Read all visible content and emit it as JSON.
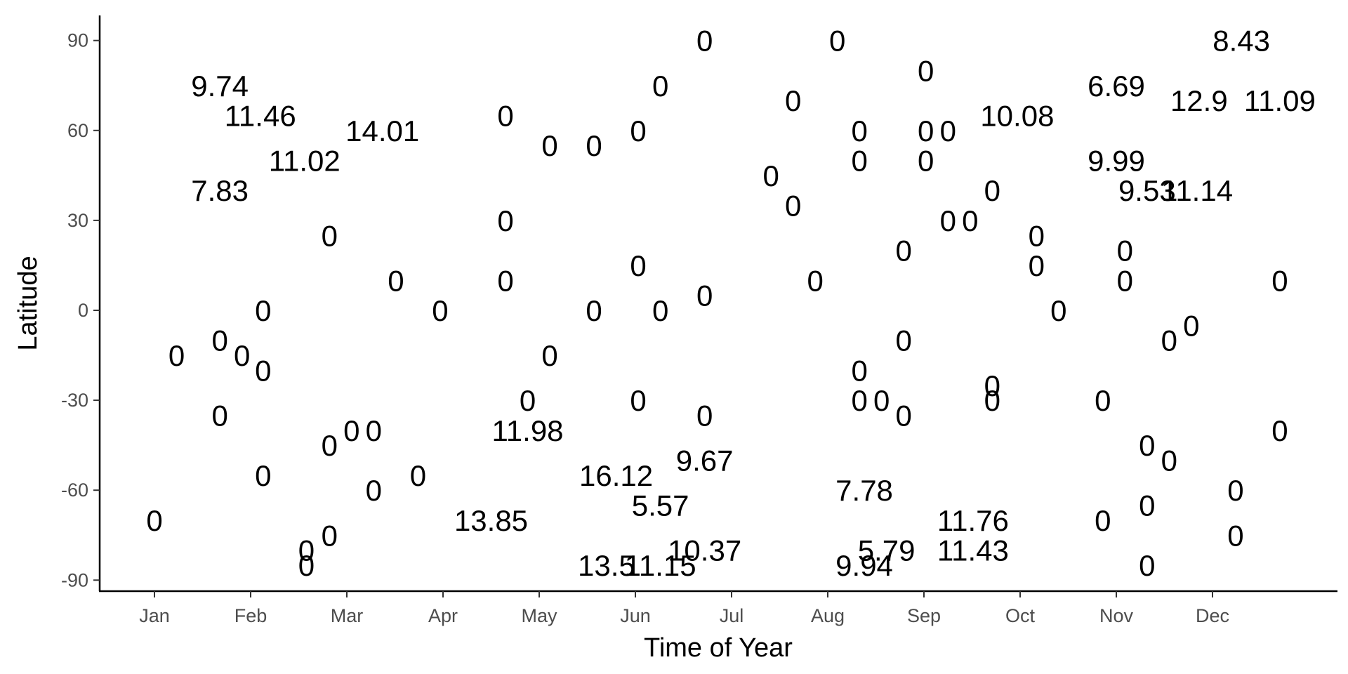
{
  "chart_data": {
    "type": "scatter",
    "title": "",
    "xlabel": "Time of Year",
    "ylabel": "Latitude",
    "x_unit": "months",
    "xlim": [
      0.5,
      13.2
    ],
    "ylim": [
      -93,
      99
    ],
    "x_ticks": [
      {
        "value": 1,
        "label": "Jan"
      },
      {
        "value": 2,
        "label": "Feb"
      },
      {
        "value": 3,
        "label": "Mar"
      },
      {
        "value": 4,
        "label": "Apr"
      },
      {
        "value": 5,
        "label": "May"
      },
      {
        "value": 6,
        "label": "Jun"
      },
      {
        "value": 7,
        "label": "Jul"
      },
      {
        "value": 8,
        "label": "Aug"
      },
      {
        "value": 9,
        "label": "Sep"
      },
      {
        "value": 10,
        "label": "Oct"
      },
      {
        "value": 11,
        "label": "Nov"
      },
      {
        "value": 12,
        "label": "Dec"
      }
    ],
    "y_ticks": [
      {
        "value": 90,
        "label": "90"
      },
      {
        "value": 60,
        "label": "60"
      },
      {
        "value": 30,
        "label": "30"
      },
      {
        "value": 0,
        "label": "0"
      },
      {
        "value": -30,
        "label": "-30"
      },
      {
        "value": -60,
        "label": "-60"
      },
      {
        "value": -90,
        "label": "-90"
      }
    ],
    "grid": false,
    "legend": "none",
    "points": [
      {
        "x": 1.0,
        "y": -70,
        "label": "0"
      },
      {
        "x": 1.23,
        "y": -15,
        "label": "0"
      },
      {
        "x": 1.68,
        "y": 75,
        "label": "9.74"
      },
      {
        "x": 2.1,
        "y": 65,
        "label": "11.46"
      },
      {
        "x": 1.68,
        "y": 40,
        "label": "7.83"
      },
      {
        "x": 1.68,
        "y": -10,
        "label": "0"
      },
      {
        "x": 1.91,
        "y": -15,
        "label": "0"
      },
      {
        "x": 2.13,
        "y": 0,
        "label": "0"
      },
      {
        "x": 2.13,
        "y": -20,
        "label": "0"
      },
      {
        "x": 1.68,
        "y": -35,
        "label": "0"
      },
      {
        "x": 2.13,
        "y": -55,
        "label": "0"
      },
      {
        "x": 2.56,
        "y": 50,
        "label": "11.02"
      },
      {
        "x": 2.58,
        "y": -80,
        "label": "0"
      },
      {
        "x": 2.58,
        "y": -85,
        "label": "0"
      },
      {
        "x": 2.82,
        "y": 25,
        "label": "0"
      },
      {
        "x": 2.82,
        "y": -45,
        "label": "0"
      },
      {
        "x": 2.82,
        "y": -75,
        "label": "0"
      },
      {
        "x": 3.05,
        "y": -40,
        "label": "0"
      },
      {
        "x": 3.28,
        "y": -40,
        "label": "0"
      },
      {
        "x": 3.28,
        "y": -60,
        "label": "0"
      },
      {
        "x": 3.37,
        "y": 60,
        "label": "14.01"
      },
      {
        "x": 3.51,
        "y": 10,
        "label": "0"
      },
      {
        "x": 3.74,
        "y": -55,
        "label": "0"
      },
      {
        "x": 3.97,
        "y": 0,
        "label": "0"
      },
      {
        "x": 4.5,
        "y": -70,
        "label": "13.85"
      },
      {
        "x": 4.65,
        "y": 65,
        "label": "0"
      },
      {
        "x": 4.65,
        "y": 30,
        "label": "0"
      },
      {
        "x": 4.65,
        "y": 10,
        "label": "0"
      },
      {
        "x": 4.88,
        "y": -30,
        "label": "0"
      },
      {
        "x": 4.88,
        "y": -40,
        "label": "11.98"
      },
      {
        "x": 5.11,
        "y": 55,
        "label": "0"
      },
      {
        "x": 5.11,
        "y": -15,
        "label": "0"
      },
      {
        "x": 5.57,
        "y": 55,
        "label": "0"
      },
      {
        "x": 5.57,
        "y": 0,
        "label": "0"
      },
      {
        "x": 5.8,
        "y": -55,
        "label": "16.12"
      },
      {
        "x": 5.7,
        "y": -85,
        "label": "13.5"
      },
      {
        "x": 6.03,
        "y": 60,
        "label": "0"
      },
      {
        "x": 6.03,
        "y": 15,
        "label": "0"
      },
      {
        "x": 6.03,
        "y": -30,
        "label": "0"
      },
      {
        "x": 6.26,
        "y": 75,
        "label": "0"
      },
      {
        "x": 6.26,
        "y": 0,
        "label": "0"
      },
      {
        "x": 6.26,
        "y": -65,
        "label": "5.57"
      },
      {
        "x": 6.26,
        "y": -85,
        "label": "11.15"
      },
      {
        "x": 6.72,
        "y": 90,
        "label": "0"
      },
      {
        "x": 6.72,
        "y": 5,
        "label": "0"
      },
      {
        "x": 6.72,
        "y": -35,
        "label": "0"
      },
      {
        "x": 6.72,
        "y": -50,
        "label": "9.67"
      },
      {
        "x": 6.72,
        "y": -80,
        "label": "10.37"
      },
      {
        "x": 7.41,
        "y": 45,
        "label": "0"
      },
      {
        "x": 7.64,
        "y": 70,
        "label": "0"
      },
      {
        "x": 7.64,
        "y": 35,
        "label": "0"
      },
      {
        "x": 7.87,
        "y": 10,
        "label": "0"
      },
      {
        "x": 8.1,
        "y": 90,
        "label": "0"
      },
      {
        "x": 8.38,
        "y": -60,
        "label": "7.78"
      },
      {
        "x": 8.38,
        "y": -85,
        "label": "9.94"
      },
      {
        "x": 8.33,
        "y": 60,
        "label": "0"
      },
      {
        "x": 8.33,
        "y": 50,
        "label": "0"
      },
      {
        "x": 8.33,
        "y": -20,
        "label": "0"
      },
      {
        "x": 8.33,
        "y": -30,
        "label": "0"
      },
      {
        "x": 8.56,
        "y": -30,
        "label": "0"
      },
      {
        "x": 8.61,
        "y": -80,
        "label": "5.79"
      },
      {
        "x": 8.79,
        "y": 20,
        "label": "0"
      },
      {
        "x": 8.79,
        "y": -10,
        "label": "0"
      },
      {
        "x": 8.79,
        "y": -35,
        "label": "0"
      },
      {
        "x": 9.02,
        "y": 80,
        "label": "0"
      },
      {
        "x": 9.02,
        "y": 60,
        "label": "0"
      },
      {
        "x": 9.02,
        "y": 50,
        "label": "0"
      },
      {
        "x": 9.25,
        "y": 60,
        "label": "0"
      },
      {
        "x": 9.25,
        "y": 30,
        "label": "0"
      },
      {
        "x": 9.48,
        "y": 30,
        "label": "0"
      },
      {
        "x": 9.51,
        "y": -70,
        "label": "11.76"
      },
      {
        "x": 9.51,
        "y": -80,
        "label": "11.43"
      },
      {
        "x": 9.71,
        "y": 40,
        "label": "0"
      },
      {
        "x": 9.71,
        "y": -25,
        "label": "0"
      },
      {
        "x": 9.71,
        "y": -30,
        "label": "0"
      },
      {
        "x": 9.97,
        "y": 65,
        "label": "10.08"
      },
      {
        "x": 10.17,
        "y": 25,
        "label": "0"
      },
      {
        "x": 10.17,
        "y": 15,
        "label": "0"
      },
      {
        "x": 10.4,
        "y": 0,
        "label": "0"
      },
      {
        "x": 10.86,
        "y": -30,
        "label": "0"
      },
      {
        "x": 10.86,
        "y": -70,
        "label": "0"
      },
      {
        "x": 11.09,
        "y": 20,
        "label": "0"
      },
      {
        "x": 11.09,
        "y": 10,
        "label": "0"
      },
      {
        "x": 11.32,
        "y": -45,
        "label": "0"
      },
      {
        "x": 11.32,
        "y": -65,
        "label": "0"
      },
      {
        "x": 11.32,
        "y": -85,
        "label": "0"
      },
      {
        "x": 11.55,
        "y": -10,
        "label": "0"
      },
      {
        "x": 11.55,
        "y": -50,
        "label": "0"
      },
      {
        "x": 11.78,
        "y": -5,
        "label": "0"
      },
      {
        "x": 11.32,
        "y": 40,
        "label": "9.53"
      },
      {
        "x": 11.0,
        "y": 50,
        "label": "9.99"
      },
      {
        "x": 11.0,
        "y": 75,
        "label": "6.69"
      },
      {
        "x": 11.84,
        "y": 40,
        "label": "11.14"
      },
      {
        "x": 11.86,
        "y": 70,
        "label": "12.9"
      },
      {
        "x": 12.3,
        "y": 90,
        "label": "8.43"
      },
      {
        "x": 12.24,
        "y": -60,
        "label": "0"
      },
      {
        "x": 12.24,
        "y": -75,
        "label": "0"
      },
      {
        "x": 12.7,
        "y": 70,
        "label": "11.09"
      },
      {
        "x": 12.7,
        "y": 10,
        "label": "0"
      },
      {
        "x": 12.7,
        "y": -40,
        "label": "0"
      }
    ]
  }
}
